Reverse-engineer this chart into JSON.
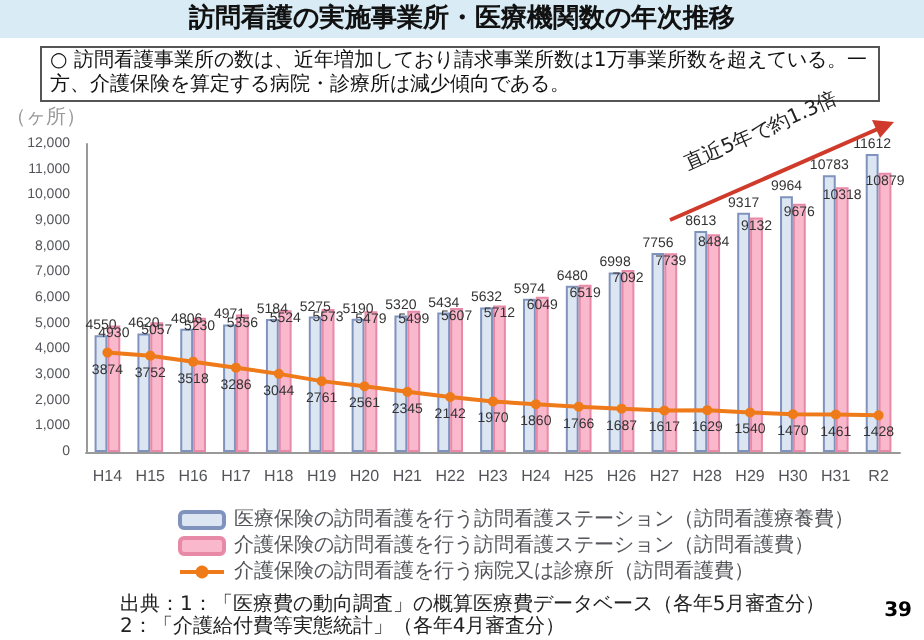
{
  "chart_data": {
    "type": "bar",
    "title": "訪問看護の実施事業所・医療機関数の年次推移",
    "subtitle": "○  訪問看護事業所の数は、近年増加しており請求事業所数は1万事業所数を超えている。一方、介護保険を算定する病院・診療所は減少傾向である。",
    "ylabel": "（ヶ所）",
    "categories": [
      "H14",
      "H15",
      "H16",
      "H17",
      "H18",
      "H19",
      "H20",
      "H21",
      "H22",
      "H23",
      "H24",
      "H25",
      "H26",
      "H27",
      "H28",
      "H29",
      "H30",
      "H31",
      "R2"
    ],
    "series": [
      {
        "name": "医療保険の訪問看護を行う訪問看護ステーション（訪問看護療養費）",
        "color": "#dce6f2",
        "values": [
          4550,
          4620,
          4806,
          4971,
          5184,
          5275,
          5190,
          5320,
          5434,
          5632,
          5974,
          6480,
          6998,
          7756,
          8613,
          9317,
          9964,
          10783,
          11612
        ]
      },
      {
        "name": "介護保険の訪問看護を行う訪問看護ステーション（訪問看護費）",
        "color": "#f9b8cc",
        "values": [
          4930,
          5057,
          5230,
          5356,
          5524,
          5573,
          5479,
          5499,
          5607,
          5712,
          6049,
          6519,
          7092,
          7739,
          8484,
          9132,
          9676,
          10318,
          10879
        ]
      },
      {
        "name": "介護保険の訪問看護を行う病院又は診療所（訪問看護費）",
        "type": "line",
        "color": "#ee7a1a",
        "values": [
          3874,
          3752,
          3518,
          3286,
          3044,
          2761,
          2561,
          2345,
          2142,
          1970,
          1860,
          1766,
          1687,
          1617,
          1629,
          1540,
          1470,
          1461,
          1428
        ]
      }
    ],
    "ylim": [
      0,
      12000
    ],
    "yticks": [
      {
        "value": 0,
        "label": "0"
      },
      {
        "value": 1000,
        "label": "1,000"
      },
      {
        "value": 2000,
        "label": "2,000"
      },
      {
        "value": 3000,
        "label": "3,000"
      },
      {
        "value": 4000,
        "label": "4,000"
      },
      {
        "value": 5000,
        "label": "5,000"
      },
      {
        "value": 6000,
        "label": "6,000"
      },
      {
        "value": 7000,
        "label": "7,000"
      },
      {
        "value": 8000,
        "label": "8,000"
      },
      {
        "value": 9000,
        "label": "9,000"
      },
      {
        "value": 10000,
        "label": "10,000"
      },
      {
        "value": 11000,
        "label": "11,000"
      },
      {
        "value": 12000,
        "label": "12,000"
      }
    ],
    "grid": false,
    "legend": "bottom right",
    "marker": "circle",
    "data_labels": true,
    "annotations": [
      "直近5年で約1.3倍",
      "出典：1：「医療費の動向調査」の概算医療費データベース（各年5月審査分）　2：「介護給付費等実態統計」（各年4月審査分）",
      "39"
    ]
  }
}
